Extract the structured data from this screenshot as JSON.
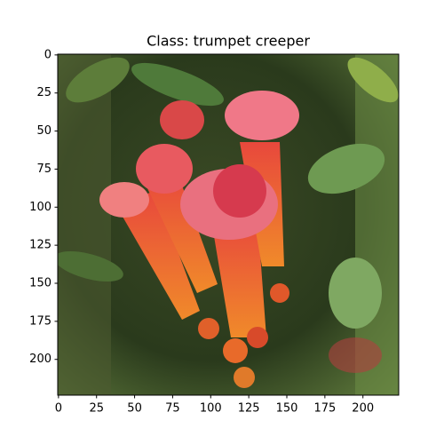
{
  "chart_data": {
    "type": "image",
    "title": "Class: trumpet creeper",
    "xlim": [
      -0.5,
      223.5
    ],
    "ylim": [
      223.5,
      -0.5
    ],
    "xticks": [
      0,
      25,
      50,
      75,
      100,
      125,
      150,
      175,
      200
    ],
    "yticks": [
      0,
      25,
      50,
      75,
      100,
      125,
      150,
      175,
      200
    ]
  }
}
